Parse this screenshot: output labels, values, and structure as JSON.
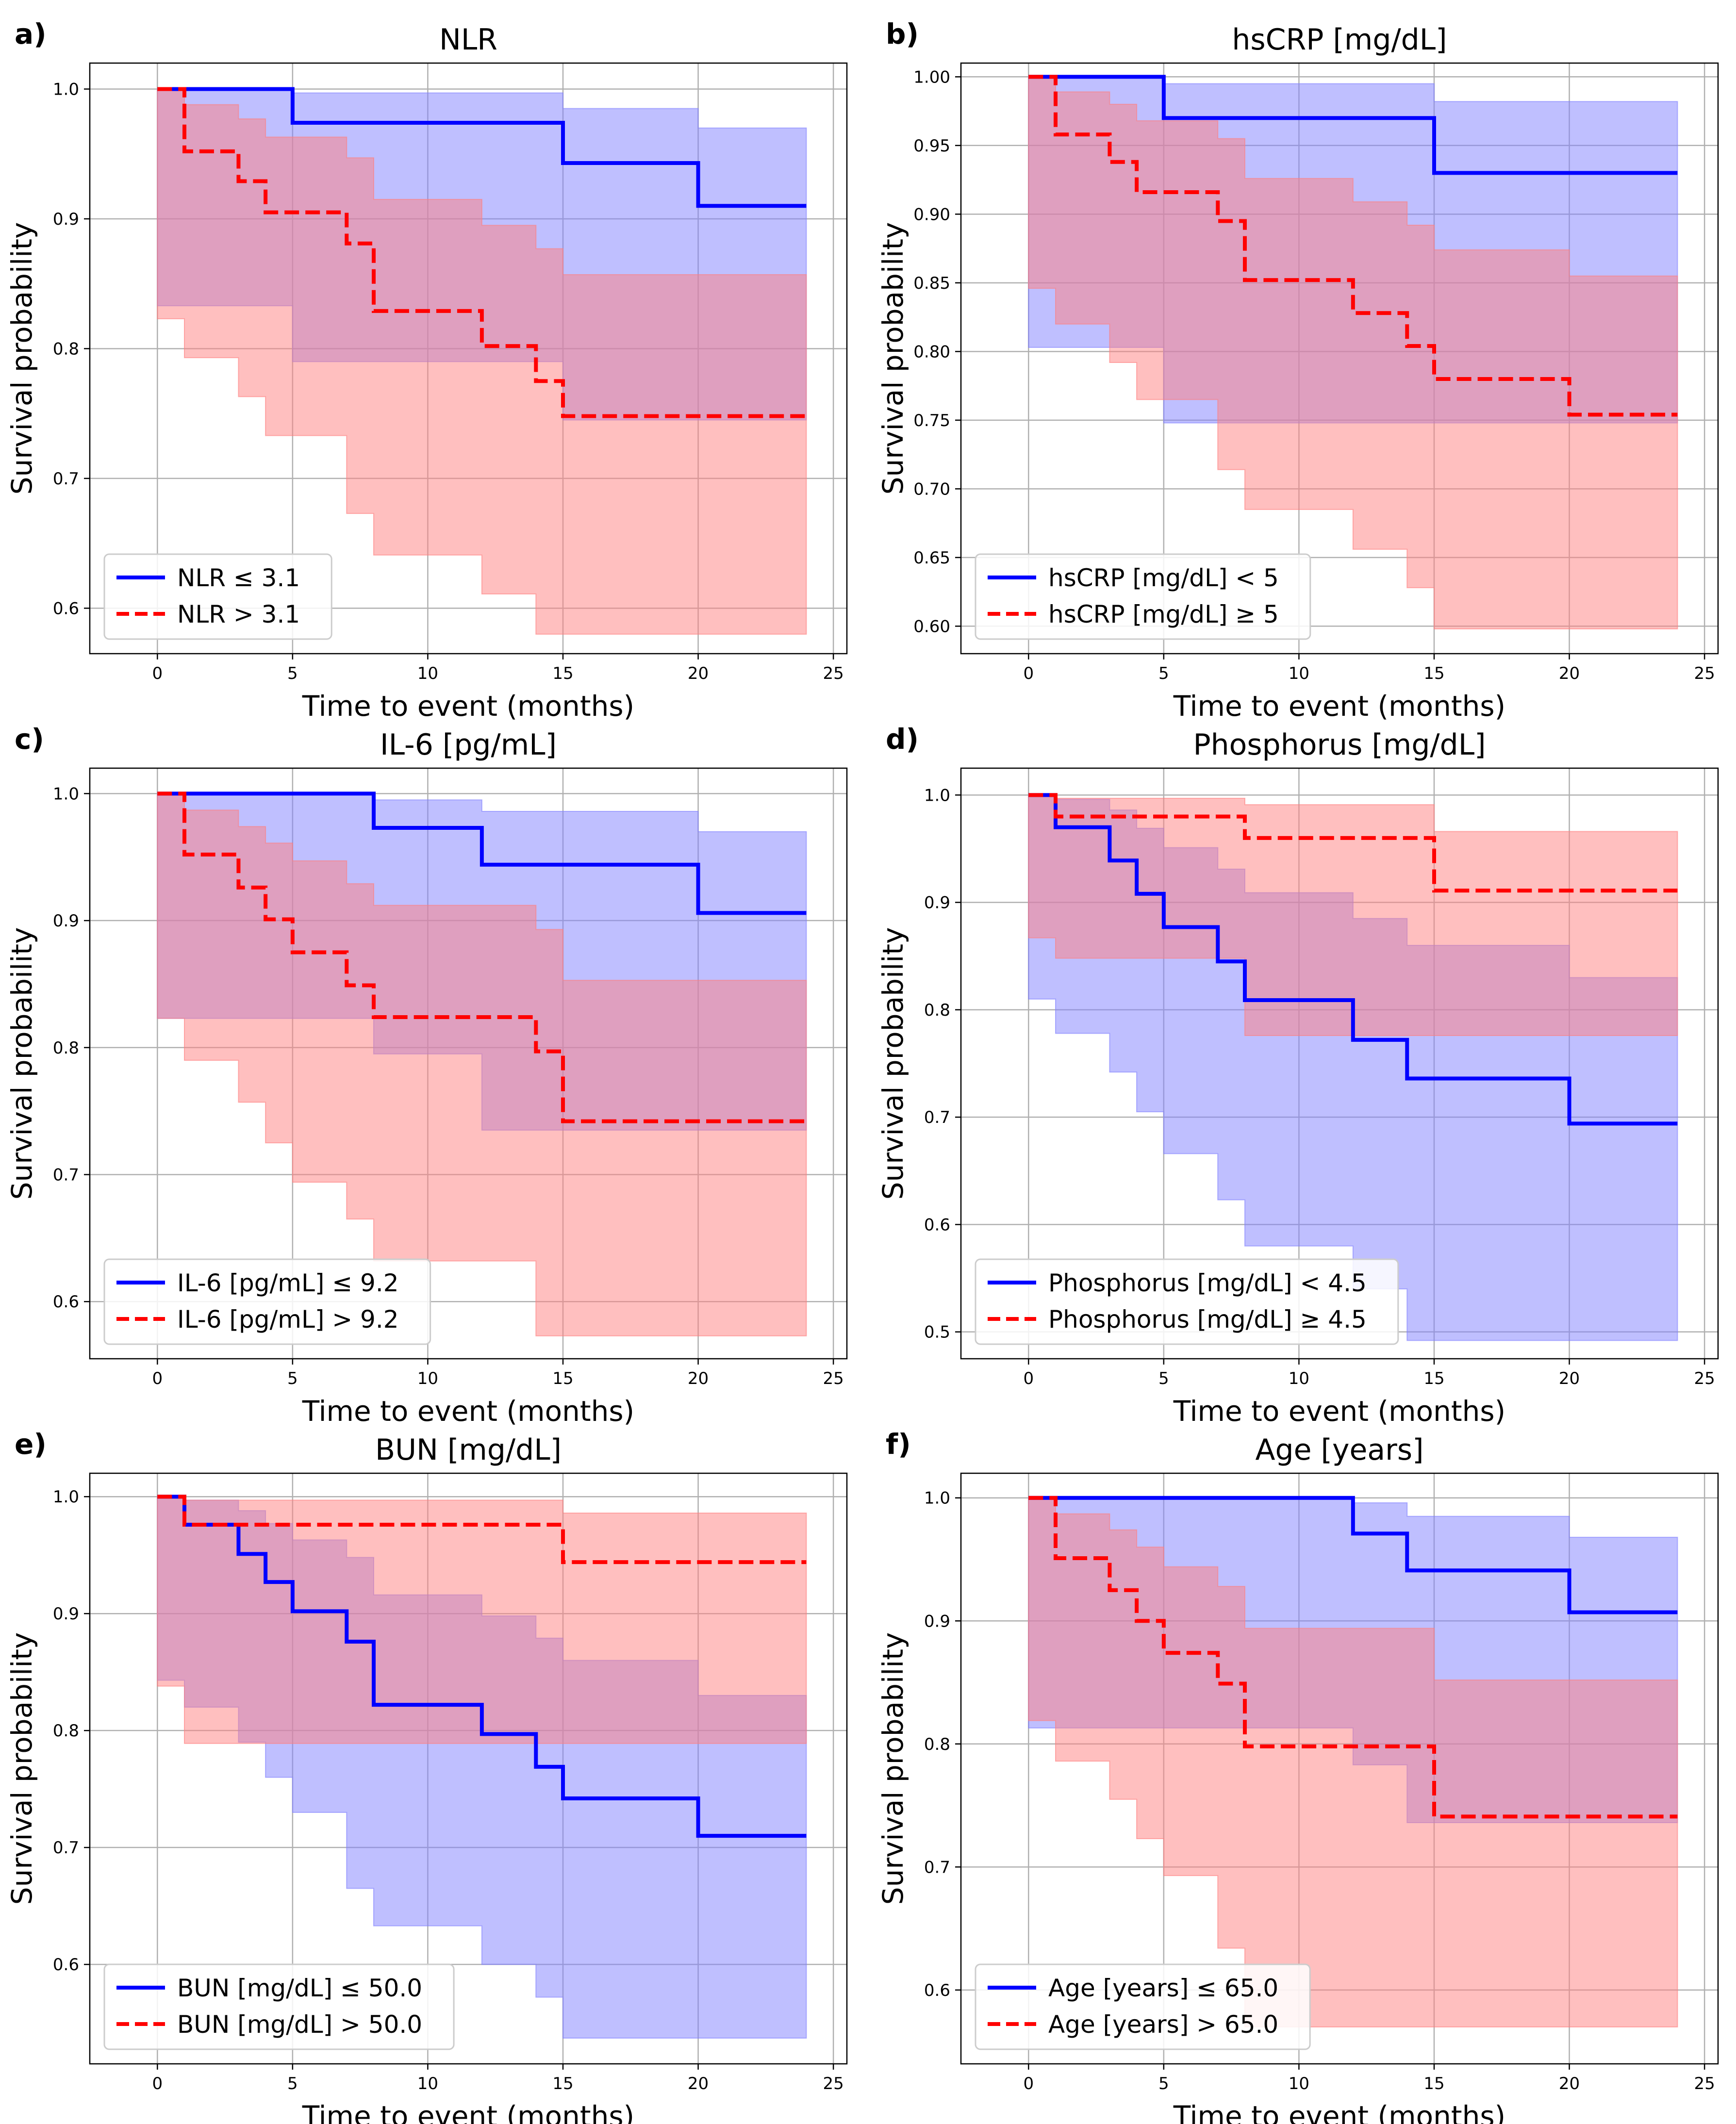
{
  "chart_data": [
    {
      "type": "line",
      "panel_label": "a)",
      "title": "NLR",
      "xlabel": "Time to event (months)",
      "ylabel": "Survival probability",
      "xlim": [
        -2.5,
        25.5
      ],
      "ylim": [
        0.565,
        1.02
      ],
      "xticks": [
        0,
        5,
        10,
        15,
        20,
        25
      ],
      "yticks": [
        0.6,
        0.7,
        0.8,
        0.9,
        1.0
      ],
      "ytick_labels": [
        "0.6",
        "0.7",
        "0.8",
        "0.9",
        "1.0"
      ],
      "grid": true,
      "legend_position": "lower-left",
      "series": [
        {
          "name": "NLR ≤ 3.1",
          "color": "#0000ff",
          "dash": "solid",
          "band_color": "#8080ff",
          "t": [
            0,
            5,
            15,
            20,
            24
          ],
          "s": [
            1.0,
            0.974,
            0.943,
            0.91,
            0.91
          ],
          "lo": [
            1.0,
            0.833,
            0.79,
            0.745,
            0.745
          ],
          "hi": [
            1.0,
            0.997,
            0.985,
            0.97,
            0.97
          ]
        },
        {
          "name": "NLR > 3.1",
          "color": "#ff0000",
          "dash": "dashed",
          "band_color": "#ff7f7f",
          "t": [
            0,
            1,
            3,
            4,
            7,
            8,
            12,
            14,
            15,
            24
          ],
          "s": [
            1.0,
            0.952,
            0.929,
            0.905,
            0.881,
            0.829,
            0.802,
            0.775,
            0.748,
            0.748
          ],
          "lo": [
            1.0,
            0.823,
            0.793,
            0.763,
            0.733,
            0.673,
            0.641,
            0.611,
            0.58,
            0.58
          ],
          "hi": [
            1.0,
            0.988,
            0.977,
            0.963,
            0.947,
            0.915,
            0.895,
            0.877,
            0.857,
            0.857
          ]
        }
      ]
    },
    {
      "type": "line",
      "panel_label": "b)",
      "title": "hsCRP [mg/dL]",
      "xlabel": "Time to event (months)",
      "ylabel": "Survival probability",
      "xlim": [
        -2.5,
        25.5
      ],
      "ylim": [
        0.58,
        1.01
      ],
      "xticks": [
        0,
        5,
        10,
        15,
        20,
        25
      ],
      "yticks": [
        0.6,
        0.65,
        0.7,
        0.75,
        0.8,
        0.85,
        0.9,
        0.95,
        1.0
      ],
      "ytick_labels": [
        "0.60",
        "0.65",
        "0.70",
        "0.75",
        "0.80",
        "0.85",
        "0.90",
        "0.95",
        "1.00"
      ],
      "grid": true,
      "legend_position": "lower-left",
      "series": [
        {
          "name": "hsCRP [mg/dL] < 5",
          "color": "#0000ff",
          "dash": "solid",
          "band_color": "#8080ff",
          "t": [
            0,
            5,
            15,
            24
          ],
          "s": [
            1.0,
            0.97,
            0.93,
            0.93
          ],
          "lo": [
            1.0,
            0.803,
            0.748,
            0.748
          ],
          "hi": [
            1.0,
            0.995,
            0.982,
            0.982
          ]
        },
        {
          "name": "hsCRP [mg/dL] ≥ 5",
          "color": "#ff0000",
          "dash": "dashed",
          "band_color": "#ff7f7f",
          "t": [
            0,
            1,
            3,
            4,
            7,
            8,
            12,
            14,
            15,
            20,
            24
          ],
          "s": [
            1.0,
            0.958,
            0.938,
            0.916,
            0.895,
            0.852,
            0.828,
            0.804,
            0.78,
            0.754,
            0.754
          ],
          "lo": [
            1.0,
            0.846,
            0.82,
            0.792,
            0.765,
            0.714,
            0.685,
            0.656,
            0.628,
            0.598,
            0.598
          ],
          "hi": [
            1.0,
            0.989,
            0.98,
            0.968,
            0.955,
            0.926,
            0.909,
            0.892,
            0.874,
            0.855,
            0.855
          ]
        }
      ]
    },
    {
      "type": "line",
      "panel_label": "c)",
      "title": "IL-6 [pg/mL]",
      "xlabel": "Time to event (months)",
      "ylabel": "Survival probability",
      "xlim": [
        -2.5,
        25.5
      ],
      "ylim": [
        0.555,
        1.02
      ],
      "xticks": [
        0,
        5,
        10,
        15,
        20,
        25
      ],
      "yticks": [
        0.6,
        0.7,
        0.8,
        0.9,
        1.0
      ],
      "ytick_labels": [
        "0.6",
        "0.7",
        "0.8",
        "0.9",
        "1.0"
      ],
      "grid": true,
      "legend_position": "lower-left",
      "series": [
        {
          "name": "IL-6 [pg/mL] ≤ 9.2",
          "color": "#0000ff",
          "dash": "solid",
          "band_color": "#8080ff",
          "t": [
            0,
            8,
            12,
            20,
            24
          ],
          "s": [
            1.0,
            0.973,
            0.944,
            0.906,
            0.906
          ],
          "lo": [
            1.0,
            0.823,
            0.795,
            0.735,
            0.735
          ],
          "hi": [
            1.0,
            0.995,
            0.986,
            0.97,
            0.97
          ]
        },
        {
          "name": "IL-6 [pg/mL] > 9.2",
          "color": "#ff0000",
          "dash": "dashed",
          "band_color": "#ff7f7f",
          "t": [
            0,
            1,
            3,
            4,
            5,
            7,
            8,
            14,
            15,
            24
          ],
          "s": [
            1.0,
            0.952,
            0.926,
            0.901,
            0.875,
            0.849,
            0.824,
            0.797,
            0.742,
            0.742
          ],
          "lo": [
            1.0,
            0.823,
            0.79,
            0.757,
            0.725,
            0.694,
            0.665,
            0.632,
            0.573,
            0.573
          ],
          "hi": [
            1.0,
            0.987,
            0.974,
            0.961,
            0.947,
            0.929,
            0.912,
            0.893,
            0.853,
            0.853
          ]
        }
      ]
    },
    {
      "type": "line",
      "panel_label": "d)",
      "title": "Phosphorus [mg/dL]",
      "xlabel": "Time to event (months)",
      "ylabel": "Survival probability",
      "xlim": [
        -2.5,
        25.5
      ],
      "ylim": [
        0.475,
        1.025
      ],
      "xticks": [
        0,
        5,
        10,
        15,
        20,
        25
      ],
      "yticks": [
        0.5,
        0.6,
        0.7,
        0.8,
        0.9,
        1.0
      ],
      "ytick_labels": [
        "0.5",
        "0.6",
        "0.7",
        "0.8",
        "0.9",
        "1.0"
      ],
      "grid": true,
      "legend_position": "lower-left",
      "series": [
        {
          "name": "Phosphorus [mg/dL] < 4.5",
          "color": "#0000ff",
          "dash": "solid",
          "band_color": "#8080ff",
          "t": [
            0,
            1,
            3,
            4,
            5,
            7,
            8,
            12,
            14,
            20,
            24
          ],
          "s": [
            1.0,
            0.97,
            0.939,
            0.908,
            0.877,
            0.845,
            0.809,
            0.772,
            0.736,
            0.694,
            0.694
          ],
          "lo": [
            1.0,
            0.81,
            0.778,
            0.742,
            0.705,
            0.666,
            0.623,
            0.58,
            0.54,
            0.492,
            0.492
          ],
          "hi": [
            1.0,
            0.996,
            0.986,
            0.969,
            0.951,
            0.931,
            0.909,
            0.885,
            0.86,
            0.83,
            0.83
          ]
        },
        {
          "name": "Phosphorus [mg/dL] ≥ 4.5",
          "color": "#ff0000",
          "dash": "dashed",
          "band_color": "#ff7f7f",
          "t": [
            0,
            1,
            8,
            15,
            24
          ],
          "s": [
            1.0,
            0.98,
            0.96,
            0.911,
            0.911
          ],
          "lo": [
            1.0,
            0.867,
            0.848,
            0.776,
            0.776
          ],
          "hi": [
            1.0,
            0.997,
            0.991,
            0.966,
            0.966
          ]
        }
      ]
    },
    {
      "type": "line",
      "panel_label": "e)",
      "title": "BUN [mg/dL]",
      "xlabel": "Time to event (months)",
      "ylabel": "Survival probability",
      "xlim": [
        -2.5,
        25.5
      ],
      "ylim": [
        0.515,
        1.02
      ],
      "xticks": [
        0,
        5,
        10,
        15,
        20,
        25
      ],
      "yticks": [
        0.6,
        0.7,
        0.8,
        0.9,
        1.0
      ],
      "ytick_labels": [
        "0.6",
        "0.7",
        "0.8",
        "0.9",
        "1.0"
      ],
      "grid": true,
      "legend_position": "lower-left",
      "series": [
        {
          "name": "BUN [mg/dL] ≤ 50.0",
          "color": "#0000ff",
          "dash": "solid",
          "band_color": "#8080ff",
          "t": [
            0,
            1,
            3,
            4,
            5,
            7,
            8,
            12,
            14,
            15,
            20,
            24
          ],
          "s": [
            1.0,
            0.976,
            0.951,
            0.927,
            0.902,
            0.876,
            0.822,
            0.797,
            0.769,
            0.742,
            0.71,
            0.71
          ],
          "lo": [
            1.0,
            0.843,
            0.82,
            0.79,
            0.76,
            0.73,
            0.665,
            0.633,
            0.6,
            0.572,
            0.537,
            0.537
          ],
          "hi": [
            1.0,
            0.997,
            0.988,
            0.977,
            0.963,
            0.948,
            0.916,
            0.898,
            0.879,
            0.86,
            0.83,
            0.83
          ]
        },
        {
          "name": "BUN [mg/dL] > 50.0",
          "color": "#ff0000",
          "dash": "dashed",
          "band_color": "#ff7f7f",
          "t": [
            0,
            1,
            15,
            24
          ],
          "s": [
            1.0,
            0.976,
            0.944,
            0.944
          ],
          "lo": [
            1.0,
            0.838,
            0.789,
            0.789
          ],
          "hi": [
            1.0,
            0.997,
            0.986,
            0.986
          ]
        }
      ]
    },
    {
      "type": "line",
      "panel_label": "f)",
      "title": "Age [years]",
      "xlabel": "Time to event (months)",
      "ylabel": "Survival probability",
      "xlim": [
        -2.5,
        25.5
      ],
      "ylim": [
        0.54,
        1.02
      ],
      "xticks": [
        0,
        5,
        10,
        15,
        20,
        25
      ],
      "yticks": [
        0.6,
        0.7,
        0.8,
        0.9,
        1.0
      ],
      "ytick_labels": [
        "0.6",
        "0.7",
        "0.8",
        "0.9",
        "1.0"
      ],
      "grid": true,
      "legend_position": "lower-left",
      "series": [
        {
          "name": "Age [years] ≤ 65.0",
          "color": "#0000ff",
          "dash": "solid",
          "band_color": "#8080ff",
          "t": [
            0,
            12,
            14,
            20,
            24
          ],
          "s": [
            1.0,
            0.971,
            0.941,
            0.907,
            0.907
          ],
          "lo": [
            1.0,
            0.813,
            0.783,
            0.736,
            0.736
          ],
          "hi": [
            1.0,
            0.996,
            0.985,
            0.968,
            0.968
          ]
        },
        {
          "name": "Age [years] > 65.0",
          "color": "#ff0000",
          "dash": "dashed",
          "band_color": "#ff7f7f",
          "t": [
            0,
            1,
            3,
            4,
            5,
            7,
            8,
            15,
            24
          ],
          "s": [
            1.0,
            0.951,
            0.925,
            0.9,
            0.874,
            0.849,
            0.798,
            0.741,
            0.741
          ],
          "lo": [
            1.0,
            0.819,
            0.786,
            0.755,
            0.723,
            0.693,
            0.634,
            0.57,
            0.57
          ],
          "hi": [
            1.0,
            0.987,
            0.974,
            0.96,
            0.944,
            0.928,
            0.894,
            0.852,
            0.852
          ]
        }
      ]
    }
  ]
}
